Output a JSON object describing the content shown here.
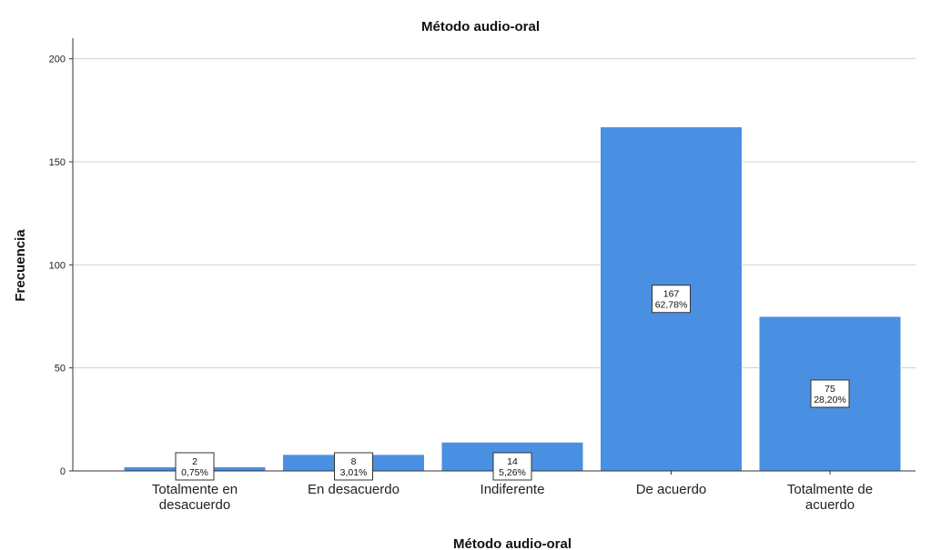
{
  "chart_data": {
    "type": "bar",
    "title": "Método audio-oral",
    "xlabel": "Método audio-oral",
    "ylabel": "Frecuencia",
    "categories": [
      [
        "Totalmente en",
        "desacuerdo"
      ],
      [
        "En desacuerdo"
      ],
      [
        "Indiferente"
      ],
      [
        "De acuerdo"
      ],
      [
        "Totalmente de",
        "acuerdo"
      ]
    ],
    "values": [
      2,
      8,
      14,
      167,
      75
    ],
    "percent_labels": [
      "0,75%",
      "3,01%",
      "5,26%",
      "62,78%",
      "28,20%"
    ],
    "count_labels": [
      "2",
      "8",
      "14",
      "167",
      "75"
    ],
    "ylim": [
      0,
      210
    ],
    "yticks": [
      0,
      50,
      100,
      150,
      200
    ],
    "grid": true,
    "bar_color": "#4a90e2"
  }
}
